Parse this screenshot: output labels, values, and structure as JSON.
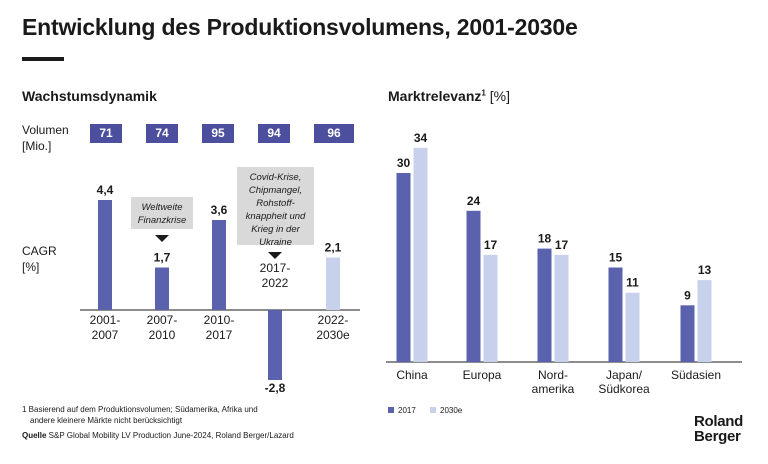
{
  "title": "Entwicklung des Produktionsvolumens, 2001-2030e",
  "left_section": {
    "title": "Wachstumsdynamik",
    "volume_label_1": "Volumen",
    "volume_label_2": "[Mio.]",
    "cagr_label_1": "CAGR",
    "cagr_label_2": "[%]",
    "note_1": "Weltweite Finanzkrise",
    "note_2": "Covid-Krise, Chipmangel, Rohstoff-knappheit und Krieg in der Ukraine"
  },
  "right_section": {
    "title": "Marktrelevanz",
    "title_sup": "1",
    "title_unit": "[%]"
  },
  "chart_data": [
    {
      "type": "bar",
      "categories": [
        "2001-2007",
        "2007-2010",
        "2010-2017",
        "2017-2022",
        "2022-2030e"
      ],
      "volume_values": [
        71,
        74,
        95,
        94,
        96
      ],
      "value_labels": [
        "4,4",
        "1,7",
        "3,6",
        "-2,8",
        "2,1"
      ],
      "values": [
        4.4,
        1.7,
        3.6,
        -2.8,
        2.1
      ],
      "estimated": [
        false,
        false,
        false,
        false,
        true
      ],
      "colors": {
        "actual": "#5b62ad",
        "estimate": "#c7d1ec"
      }
    },
    {
      "type": "bar",
      "categories": [
        "China",
        "Europa",
        "Nord-amerika",
        "Japan/ Südkorea",
        "Südasien"
      ],
      "series": [
        {
          "name": "2017",
          "values": [
            30,
            24,
            18,
            15,
            9
          ],
          "color": "#5b62ad"
        },
        {
          "name": "2030e",
          "values": [
            34,
            17,
            17,
            11,
            13
          ],
          "color": "#c7d1ec"
        }
      ]
    }
  ],
  "footnote_1": "1  Basierend auf dem Produktionsvolumen; Südamerika, Afrika und",
  "footnote_2": "andere kleinere Märkte nicht berücksichtigt",
  "source_label": "Quelle",
  "source_text": " S&P Global Mobility LV Production June-2024, Roland Berger/Lazard",
  "logo_line_1": "Roland",
  "logo_line_2": "Berger"
}
